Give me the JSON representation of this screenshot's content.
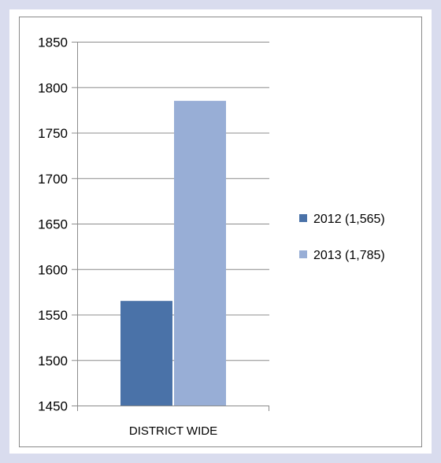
{
  "chart_data": {
    "type": "bar",
    "categories": [
      "DISTRICT WIDE"
    ],
    "series": [
      {
        "name": "2012 (1,565)",
        "values": [
          1565
        ],
        "color": "#4a72a8"
      },
      {
        "name": "2013 (1,785)",
        "values": [
          1785
        ],
        "color": "#98aed6"
      }
    ],
    "ylim": [
      1450,
      1850
    ],
    "yticks": [
      "1450",
      "1500",
      "1550",
      "1600",
      "1650",
      "1700",
      "1750",
      "1800",
      "1850"
    ],
    "grid": true,
    "legend_position": "right"
  },
  "colors": {
    "background": "#d9dcee",
    "gridline": "#8c8c8c"
  }
}
